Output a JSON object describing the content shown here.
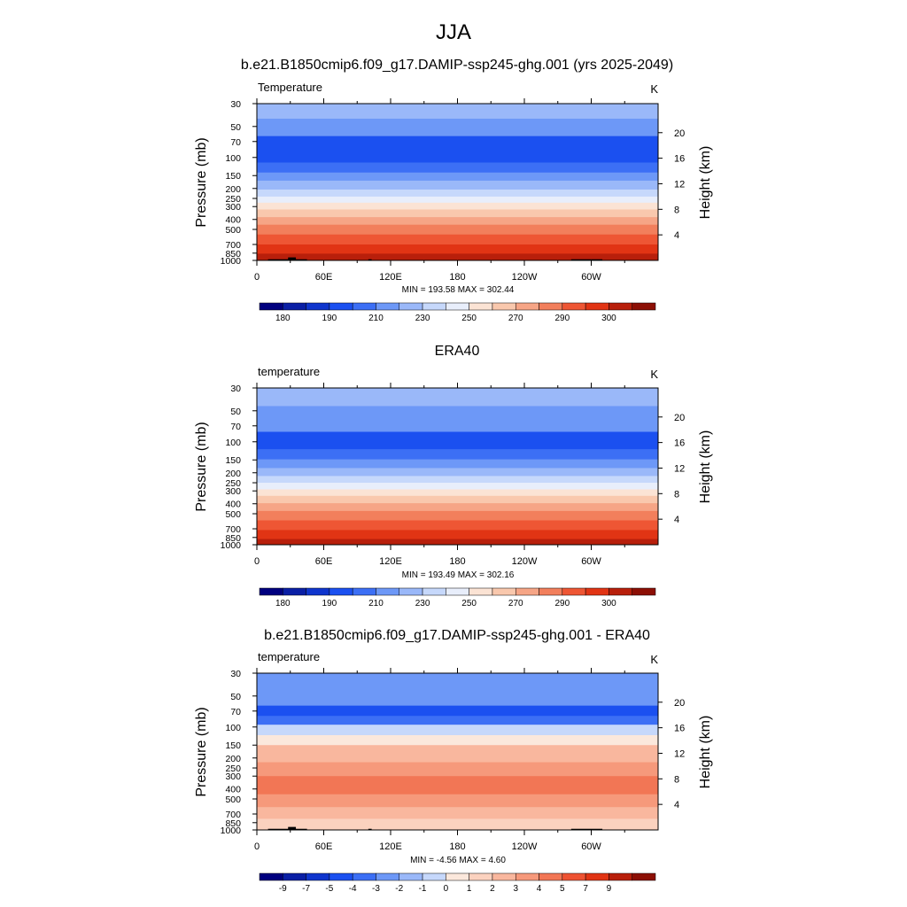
{
  "figure": {
    "title": "JJA"
  },
  "colors": {
    "temp_levels": [
      "#00007f",
      "#0a1fa5",
      "#0f35cd",
      "#1b50f0",
      "#3c6ff5",
      "#6d98f7",
      "#9ab8f9",
      "#c6d8fb",
      "#e8eefb",
      "#fbe3d4",
      "#f9c8ad",
      "#f6a586",
      "#f27f5c",
      "#ee5634",
      "#e13414",
      "#b81f0b",
      "#8c0f05"
    ],
    "diff_levels": [
      "#00007f",
      "#0a1fa5",
      "#0f35cd",
      "#1b50f0",
      "#3c6ff5",
      "#6d98f7",
      "#9ab8f9",
      "#c6d8fb",
      "#fbe8dc",
      "#fbd2bf",
      "#f9b79e",
      "#f6997b",
      "#f27655",
      "#ee5232",
      "#e13414",
      "#b81f0b",
      "#8c0f05"
    ],
    "topo": "#000000"
  },
  "chart_data": [
    {
      "type": "heatmap",
      "title": "b.e21.B1850cmip6.f09_g17.DAMIP-ssp245-ghg.001 (yrs 2025-2049)",
      "left_label": "Temperature",
      "units": "K",
      "xlabel": "",
      "ylabel": "Pressure (mb)",
      "ylabel_right": "Height (km)",
      "x_ticks": [
        "0",
        "60E",
        "120E",
        "180",
        "120W",
        "60W"
      ],
      "x_tick_lon": [
        0,
        60,
        120,
        180,
        240,
        300
      ],
      "xlim": [
        0,
        360
      ],
      "y_ticks": [
        "30",
        "50",
        "70",
        "100",
        "150",
        "200",
        "250",
        "300",
        "400",
        "500",
        "700",
        "850",
        "1000"
      ],
      "y_tick_p": [
        30,
        50,
        70,
        100,
        150,
        200,
        250,
        300,
        400,
        500,
        700,
        850,
        1000
      ],
      "ylim": [
        30,
        1000
      ],
      "right_ticks": [
        "4",
        "8",
        "12",
        "16",
        "20"
      ],
      "right_tick_km": [
        4,
        8,
        12,
        16,
        20
      ],
      "stats": "MIN = 193.58  MAX = 302.44",
      "colorbar_labels": [
        "180",
        "190",
        "210",
        "230",
        "250",
        "270",
        "290",
        "300"
      ],
      "colorbar_values": [
        180,
        185,
        190,
        200,
        210,
        220,
        230,
        240,
        250,
        260,
        270,
        280,
        290,
        295,
        300,
        305
      ],
      "bands": [
        {
          "p_top": 30,
          "p_bot": 42,
          "level": 6
        },
        {
          "p_top": 42,
          "p_bot": 62,
          "level": 5
        },
        {
          "p_top": 62,
          "p_bot": 112,
          "level": 3
        },
        {
          "p_top": 112,
          "p_bot": 140,
          "level": 4
        },
        {
          "p_top": 140,
          "p_bot": 168,
          "level": 5
        },
        {
          "p_top": 168,
          "p_bot": 205,
          "level": 6
        },
        {
          "p_top": 205,
          "p_bot": 240,
          "level": 7
        },
        {
          "p_top": 240,
          "p_bot": 275,
          "level": 8
        },
        {
          "p_top": 275,
          "p_bot": 320,
          "level": 9
        },
        {
          "p_top": 320,
          "p_bot": 380,
          "level": 10
        },
        {
          "p_top": 380,
          "p_bot": 450,
          "level": 11
        },
        {
          "p_top": 450,
          "p_bot": 560,
          "level": 12
        },
        {
          "p_top": 560,
          "p_bot": 700,
          "level": 13
        },
        {
          "p_top": 700,
          "p_bot": 860,
          "level": 14
        },
        {
          "p_top": 860,
          "p_bot": 1000,
          "level": 15
        }
      ],
      "topography": [
        {
          "lon_start": 10,
          "lon_end": 45,
          "p_top": 975
        },
        {
          "lon_start": 28,
          "lon_end": 35,
          "p_top": 935
        },
        {
          "lon_start": 100,
          "lon_end": 103,
          "p_top": 975
        },
        {
          "lon_start": 282,
          "lon_end": 310,
          "p_top": 975
        }
      ]
    },
    {
      "type": "heatmap",
      "title": "ERA40",
      "left_label": "temperature",
      "units": "K",
      "xlabel": "",
      "ylabel": "Pressure (mb)",
      "ylabel_right": "Height (km)",
      "x_ticks": [
        "0",
        "60E",
        "120E",
        "180",
        "120W",
        "60W"
      ],
      "x_tick_lon": [
        0,
        60,
        120,
        180,
        240,
        300
      ],
      "xlim": [
        0,
        360
      ],
      "y_ticks": [
        "30",
        "50",
        "70",
        "100",
        "150",
        "200",
        "250",
        "300",
        "400",
        "500",
        "700",
        "850",
        "1000"
      ],
      "y_tick_p": [
        30,
        50,
        70,
        100,
        150,
        200,
        250,
        300,
        400,
        500,
        700,
        850,
        1000
      ],
      "ylim": [
        30,
        1000
      ],
      "right_ticks": [
        "4",
        "8",
        "12",
        "16",
        "20"
      ],
      "right_tick_km": [
        4,
        8,
        12,
        16,
        20
      ],
      "stats": "MIN = 193.49  MAX = 302.16",
      "colorbar_labels": [
        "180",
        "190",
        "210",
        "230",
        "250",
        "270",
        "290",
        "300"
      ],
      "colorbar_values": [
        180,
        185,
        190,
        200,
        210,
        220,
        230,
        240,
        250,
        260,
        270,
        280,
        290,
        295,
        300,
        305
      ],
      "bands": [
        {
          "p_top": 30,
          "p_bot": 45,
          "level": 6
        },
        {
          "p_top": 45,
          "p_bot": 80,
          "level": 5
        },
        {
          "p_top": 80,
          "p_bot": 118,
          "level": 3
        },
        {
          "p_top": 118,
          "p_bot": 148,
          "level": 4
        },
        {
          "p_top": 148,
          "p_bot": 180,
          "level": 5
        },
        {
          "p_top": 180,
          "p_bot": 215,
          "level": 6
        },
        {
          "p_top": 215,
          "p_bot": 250,
          "level": 7
        },
        {
          "p_top": 250,
          "p_bot": 290,
          "level": 8
        },
        {
          "p_top": 290,
          "p_bot": 335,
          "level": 9
        },
        {
          "p_top": 335,
          "p_bot": 395,
          "level": 10
        },
        {
          "p_top": 395,
          "p_bot": 470,
          "level": 11
        },
        {
          "p_top": 470,
          "p_bot": 580,
          "level": 12
        },
        {
          "p_top": 580,
          "p_bot": 720,
          "level": 13
        },
        {
          "p_top": 720,
          "p_bot": 880,
          "level": 14
        },
        {
          "p_top": 880,
          "p_bot": 1000,
          "level": 15
        }
      ],
      "topography": []
    },
    {
      "type": "heatmap",
      "title": "b.e21.B1850cmip6.f09_g17.DAMIP-ssp245-ghg.001 - ERA40",
      "left_label": "temperature",
      "units": "K",
      "xlabel": "",
      "ylabel": "Pressure (mb)",
      "ylabel_right": "Height (km)",
      "x_ticks": [
        "0",
        "60E",
        "120E",
        "180",
        "120W",
        "60W"
      ],
      "x_tick_lon": [
        0,
        60,
        120,
        180,
        240,
        300
      ],
      "xlim": [
        0,
        360
      ],
      "y_ticks": [
        "30",
        "50",
        "70",
        "100",
        "150",
        "200",
        "250",
        "300",
        "400",
        "500",
        "700",
        "850",
        "1000"
      ],
      "y_tick_p": [
        30,
        50,
        70,
        100,
        150,
        200,
        250,
        300,
        400,
        500,
        700,
        850,
        1000
      ],
      "ylim": [
        30,
        1000
      ],
      "right_ticks": [
        "4",
        "8",
        "12",
        "16",
        "20"
      ],
      "right_tick_km": [
        4,
        8,
        12,
        16,
        20
      ],
      "stats": "MIN = -4.56  MAX =  4.60",
      "colorbar_labels": [
        "-9",
        "-7",
        "-5",
        "-4",
        "-3",
        "-2",
        "-1",
        "0",
        "1",
        "2",
        "3",
        "4",
        "5",
        "7",
        "9"
      ],
      "colorbar_values": [
        -9,
        -7,
        -5,
        -4,
        -3,
        -2,
        -1,
        0,
        1,
        2,
        3,
        4,
        5,
        7,
        9
      ],
      "bands": [
        {
          "p_top": 30,
          "p_bot": 62,
          "level": 5
        },
        {
          "p_top": 62,
          "p_bot": 78,
          "level": 3
        },
        {
          "p_top": 78,
          "p_bot": 95,
          "level": 4
        },
        {
          "p_top": 95,
          "p_bot": 120,
          "level": 7
        },
        {
          "p_top": 120,
          "p_bot": 150,
          "level": 8
        },
        {
          "p_top": 150,
          "p_bot": 220,
          "level": 10
        },
        {
          "p_top": 220,
          "p_bot": 300,
          "level": 11
        },
        {
          "p_top": 300,
          "p_bot": 450,
          "level": 12
        },
        {
          "p_top": 450,
          "p_bot": 600,
          "level": 11
        },
        {
          "p_top": 600,
          "p_bot": 780,
          "level": 10
        },
        {
          "p_top": 780,
          "p_bot": 1000,
          "level": 9
        }
      ],
      "topography": [
        {
          "lon_start": 10,
          "lon_end": 45,
          "p_top": 975
        },
        {
          "lon_start": 28,
          "lon_end": 35,
          "p_top": 935
        },
        {
          "lon_start": 100,
          "lon_end": 103,
          "p_top": 975
        },
        {
          "lon_start": 282,
          "lon_end": 310,
          "p_top": 975
        }
      ]
    }
  ]
}
